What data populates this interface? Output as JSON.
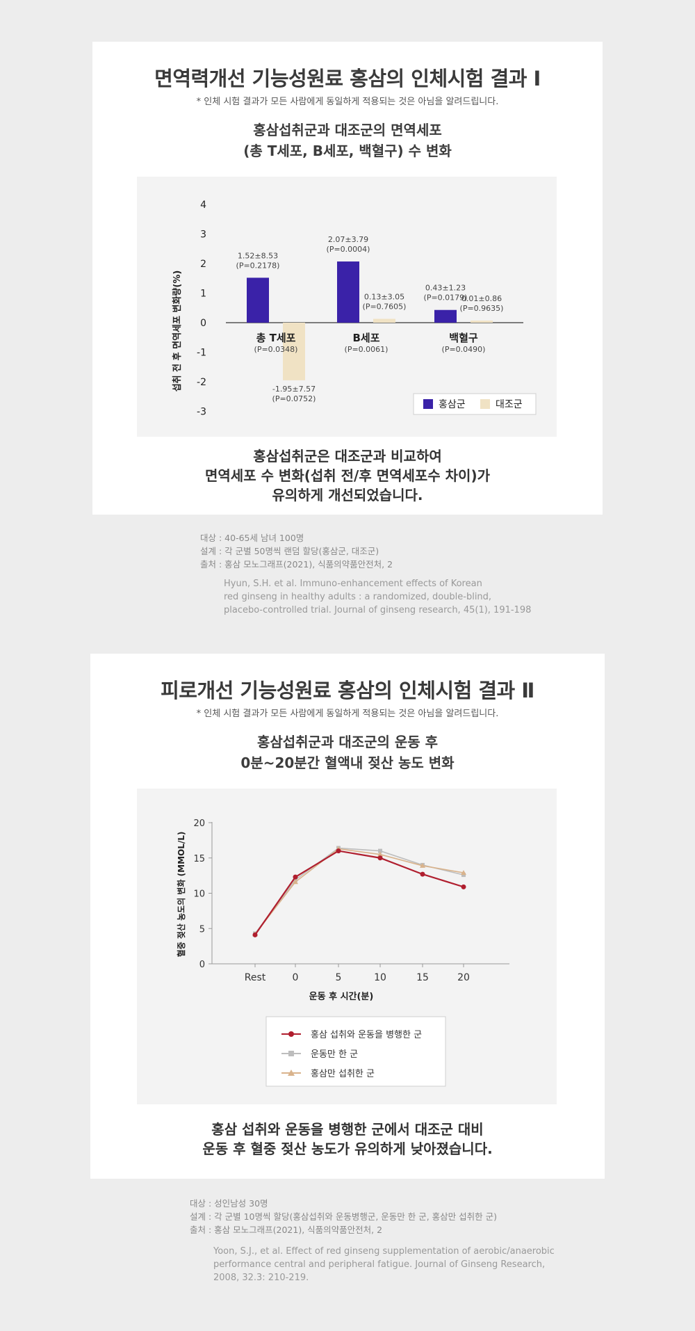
{
  "section1": {
    "title": "면역력개선 기능성원료 홍삼의 인체시험 결과 Ⅰ",
    "notice": "* 인체 시험 결과가 모든 사람에게 동일하게 적용되는 것은 아님을 알려드립니다.",
    "subtitle_lines": [
      "홍삼섭취군과 대조군의 면역세포",
      "(총 T세포, B세포, 백혈구) 수 변화"
    ],
    "conclusion_lines": [
      "홍삼섭취군은 대조군과 비교하여",
      "면역세포 수 변화(섭취 전/후 면역세포수 차이)가",
      "유의하게 개선되었습니다."
    ],
    "meta_lines": [
      "대상 : 40-65세 남녀 100명",
      "설계 : 각 군별 50명씩 랜덤 할당(홍삼군, 대조군)",
      "출처 : 홍삼 모노그래프(2021), 식품의약품안전처, 2"
    ],
    "ref_lines": [
      "Hyun, S.H. et al. Immuno-enhancement effects of Korean",
      "red ginseng in healthy adults :  a randomized, double-blind,",
      "placebo-controlled trial. Journal of ginseng research, 45(1), 191-198"
    ]
  },
  "section2": {
    "title": "피로개선 기능성원료 홍삼의 인체시험 결과 Ⅱ",
    "notice": "* 인체 시험 결과가 모든 사람에게 동일하게 적용되는 것은 아님을 알려드립니다.",
    "subtitle_lines": [
      "홍삼섭취군과 대조군의 운동 후",
      "0분~20분간 혈액내 젖산 농도 변화"
    ],
    "conclusion_lines": [
      "홍삼 섭취와 운동을 병행한 군에서 대조군 대비",
      "운동 후 혈중 젖산 농도가 유의하게 낮아졌습니다."
    ],
    "meta_lines": [
      "대상 : 성인남성 30명",
      "설계 : 각 군별 10명씩 할당(홍삼섭취와 운동병행군, 운동만 한 군, 홍삼만 섭취한 군)",
      "출처 : 홍삼 모노그래프(2021), 식품의약품안전처, 2"
    ],
    "ref_lines": [
      "Yoon, S.J., et al. Effect of red ginseng supplementation of aerobic/anaerobic",
      "performance central and peripheral fatigue. Journal of Ginseng Research,",
      "2008, 32.3: 210-219."
    ]
  },
  "chart_data": [
    {
      "type": "bar",
      "ylabel": "섭취 전 후 면역세포 변화량(%)",
      "ylim": [
        -3,
        4
      ],
      "yticks": [
        4,
        3,
        2,
        1,
        0,
        -1,
        -2,
        -3
      ],
      "categories": [
        "총 T세포",
        "B세포",
        "백혈구"
      ],
      "category_pvalues": [
        "(P=0.0348)",
        "(P=0.0061)",
        "(P=0.0490)"
      ],
      "series": [
        {
          "name": "홍삼군",
          "color": "#3a22a8",
          "values": [
            1.52,
            2.07,
            0.43
          ],
          "labels": [
            "1.52±8.53",
            "2.07±3.79",
            "0.43±1.23"
          ],
          "pvalues": [
            "(P=0.2178)",
            "(P=0.0004)",
            "(P=0.0179)"
          ]
        },
        {
          "name": "대조군",
          "color": "#f0e2c4",
          "values": [
            -1.95,
            0.13,
            0.01
          ],
          "labels": [
            "-1.95±7.57",
            "0.13±3.05",
            "0.01±0.86"
          ],
          "pvalues": [
            "(P=0.0752)",
            "(P=0.7605)",
            "(P=0.9635)"
          ]
        }
      ],
      "legend_position": "bottom-right"
    },
    {
      "type": "line",
      "xlabel": "운동 후 시간(분)",
      "ylabel": "혈중 젖산 농도의 변화 (MMOL/L)",
      "x": [
        "Rest",
        "0",
        "5",
        "10",
        "15",
        "20"
      ],
      "ylim": [
        0,
        20
      ],
      "yticks": [
        0,
        5,
        10,
        15,
        20
      ],
      "series": [
        {
          "name": "홍삼 섭취와 운동을 병행한 군",
          "color": "#b01e2e",
          "marker": "circle",
          "values": [
            4.1,
            12.3,
            16.0,
            15.0,
            12.7,
            10.9
          ]
        },
        {
          "name": "운동만 한 군",
          "color": "#bdbdbd",
          "marker": "square",
          "values": [
            4.3,
            11.9,
            16.4,
            16.0,
            14.0,
            12.6
          ]
        },
        {
          "name": "홍삼만 섭취한 군",
          "color": "#d9b38c",
          "marker": "triangle",
          "values": [
            4.2,
            11.6,
            16.3,
            15.5,
            13.9,
            12.9
          ]
        }
      ],
      "legend_position": "bottom"
    }
  ]
}
